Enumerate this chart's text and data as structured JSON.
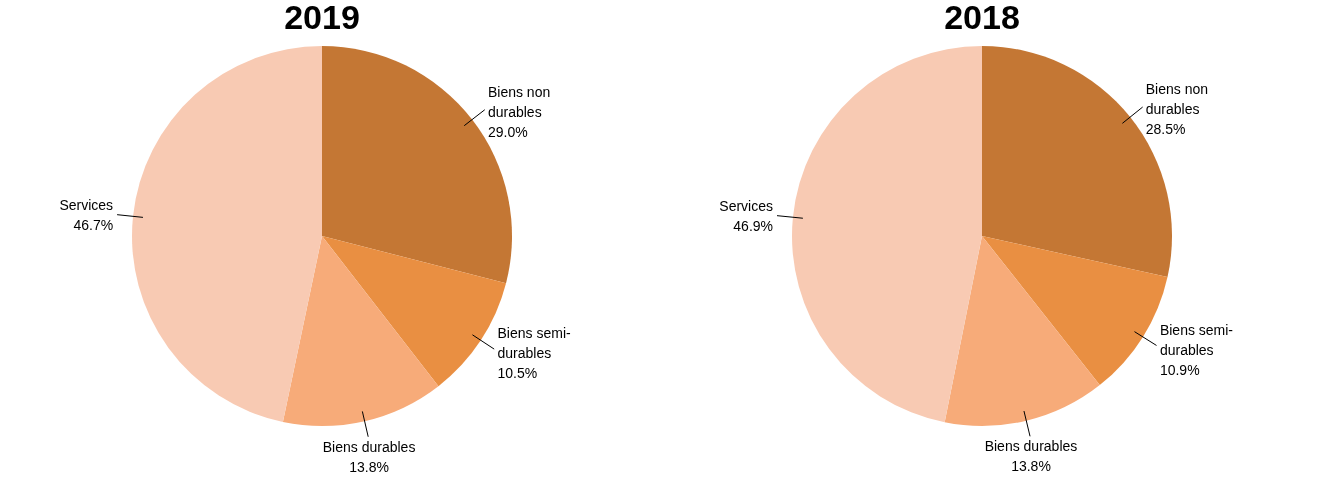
{
  "chart_data": [
    {
      "type": "pie",
      "title": "2019",
      "categories": [
        "Biens non durables",
        "Biens semi-durables",
        "Biens durables",
        "Services"
      ],
      "values": [
        29.0,
        10.5,
        13.8,
        46.7
      ],
      "value_labels": [
        "29.0%",
        "10.5%",
        "13.8%",
        "46.7%"
      ],
      "colors": [
        "#c47734",
        "#e98f42",
        "#f7ab79",
        "#f8cab3"
      ],
      "legend": false
    },
    {
      "type": "pie",
      "title": "2018",
      "categories": [
        "Biens non durables",
        "Biens semi-durables",
        "Biens durables",
        "Services"
      ],
      "values": [
        28.5,
        10.9,
        13.8,
        46.9
      ],
      "value_labels": [
        "28.5%",
        "10.9%",
        "13.8%",
        "46.9%"
      ],
      "colors": [
        "#c47734",
        "#e98f42",
        "#f7ab79",
        "#f8cab3"
      ],
      "legend": false
    }
  ]
}
